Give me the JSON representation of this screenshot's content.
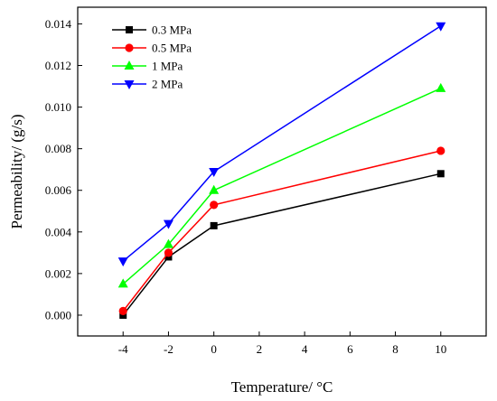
{
  "chart_data": {
    "type": "line",
    "title": "",
    "xlabel": "Temperature/ °C",
    "ylabel": "Permeability/ (g/s)",
    "x": [
      -4,
      -2,
      0,
      10
    ],
    "x_ticks": [
      -4,
      -2,
      0,
      2,
      4,
      6,
      8,
      10
    ],
    "x_tick_labels": [
      "-4",
      "-2",
      "0",
      "2",
      "4",
      "6",
      "8",
      "10"
    ],
    "y_ticks": [
      0.0,
      0.002,
      0.004,
      0.006,
      0.008,
      0.01,
      0.012,
      0.014
    ],
    "y_tick_labels": [
      "0.000",
      "0.002",
      "0.004",
      "0.006",
      "0.008",
      "0.010",
      "0.012",
      "0.014"
    ],
    "xlim": [
      -6,
      12
    ],
    "ylim": [
      -0.001,
      0.0148
    ],
    "grid": false,
    "legend_position": "top-left",
    "series": [
      {
        "name": "0.3 MPa",
        "color": "#000000",
        "marker": "square",
        "values": [
          0.0,
          0.0028,
          0.0043,
          0.0068
        ]
      },
      {
        "name": "0.5 MPa",
        "color": "#ff0000",
        "marker": "circle",
        "values": [
          0.0002,
          0.003,
          0.0053,
          0.0079
        ]
      },
      {
        "name": "1 MPa",
        "color": "#00ff00",
        "marker": "triangle-up",
        "values": [
          0.0015,
          0.0034,
          0.006,
          0.0109
        ]
      },
      {
        "name": "2 MPa",
        "color": "#0000ff",
        "marker": "triangle-down",
        "values": [
          0.0026,
          0.0044,
          0.0069,
          0.0139
        ]
      }
    ]
  }
}
